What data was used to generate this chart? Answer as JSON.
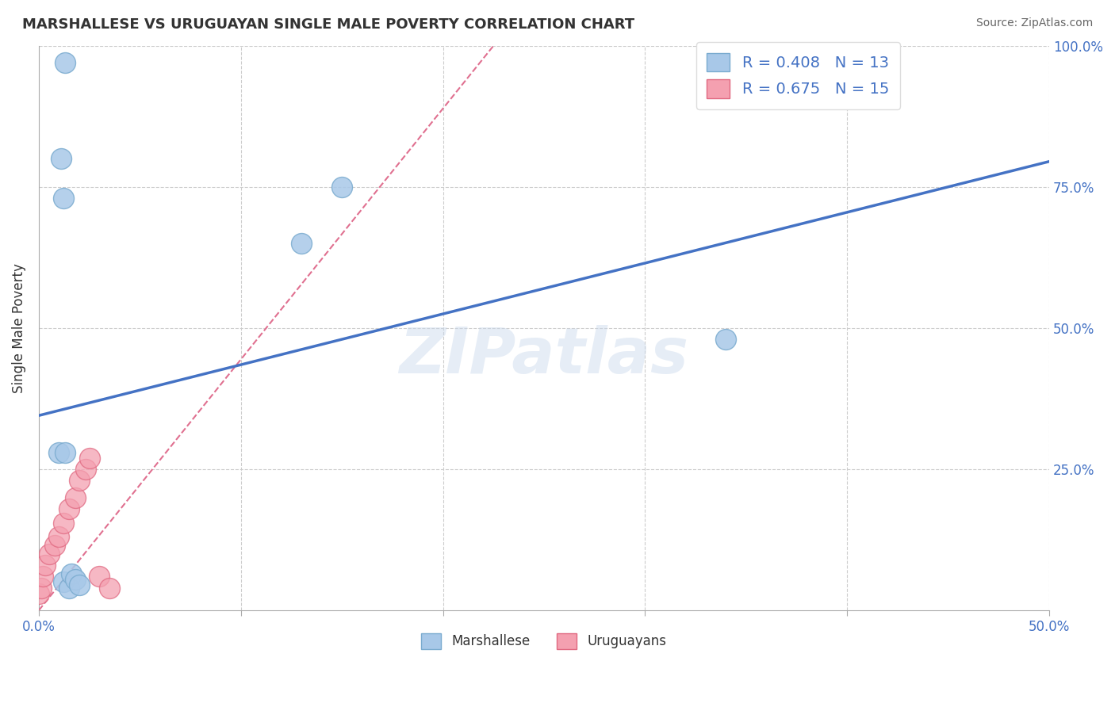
{
  "title": "MARSHALLESE VS URUGUAYAN SINGLE MALE POVERTY CORRELATION CHART",
  "source": "Source: ZipAtlas.com",
  "ylabel": "Single Male Poverty",
  "xlim": [
    0.0,
    0.5
  ],
  "ylim": [
    0.0,
    1.0
  ],
  "marshallese_R": 0.408,
  "marshallese_N": 13,
  "uruguayan_R": 0.675,
  "uruguayan_N": 15,
  "marshallese_color": "#a8c8e8",
  "marshallese_edge": "#7aabcf",
  "uruguayan_color": "#f4a0b0",
  "uruguayan_edge": "#e06880",
  "blue_line_color": "#4472c4",
  "pink_line_color": "#e07090",
  "blue_line_x": [
    0.0,
    0.5
  ],
  "blue_line_y": [
    0.345,
    0.795
  ],
  "pink_line_x": [
    0.0,
    0.225
  ],
  "pink_line_y": [
    0.0,
    1.0
  ],
  "marshallese_x": [
    0.013,
    0.011,
    0.012,
    0.01,
    0.013,
    0.34,
    0.012,
    0.015,
    0.016,
    0.018,
    0.02,
    0.13,
    0.15
  ],
  "marshallese_y": [
    0.97,
    0.8,
    0.73,
    0.28,
    0.28,
    0.48,
    0.05,
    0.04,
    0.065,
    0.055,
    0.045,
    0.65,
    0.75
  ],
  "uruguayan_x": [
    0.0,
    0.001,
    0.002,
    0.003,
    0.005,
    0.008,
    0.01,
    0.012,
    0.015,
    0.018,
    0.02,
    0.023,
    0.025,
    0.03,
    0.035
  ],
  "uruguayan_y": [
    0.03,
    0.04,
    0.06,
    0.08,
    0.1,
    0.115,
    0.13,
    0.155,
    0.18,
    0.2,
    0.23,
    0.25,
    0.27,
    0.06,
    0.04
  ],
  "xtick_labels": [
    "0.0%",
    "",
    "",
    "",
    "",
    "50.0%"
  ],
  "ytick_labels_right": [
    "25.0%",
    "50.0%",
    "75.0%",
    "100.0%"
  ],
  "axis_color": "#4472c4",
  "grid_color": "#cccccc",
  "title_fontsize": 13,
  "source_fontsize": 10,
  "tick_fontsize": 12,
  "legend_fontsize": 14,
  "watermark_text": "ZIPatlas",
  "watermark_color": "#c8d8ec",
  "watermark_alpha": 0.45
}
